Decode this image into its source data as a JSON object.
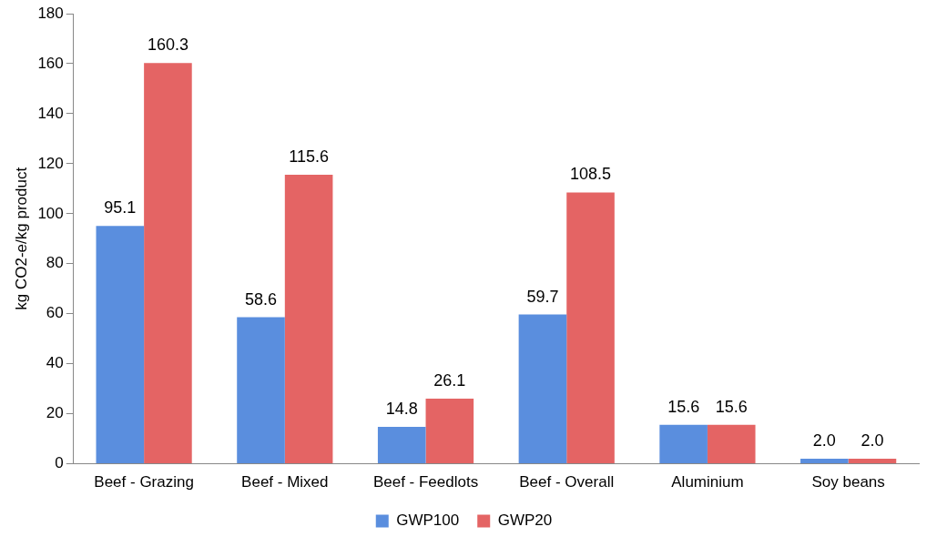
{
  "chart_data": {
    "type": "bar",
    "ylabel": "kg CO2-e/kg product",
    "categories": [
      "Beef - Grazing",
      "Beef - Mixed",
      "Beef - Feedlots",
      "Beef - Overall",
      "Aluminium",
      "Soy beans"
    ],
    "series": [
      {
        "name": "GWP100",
        "color": "#5a8ede",
        "values": [
          95.1,
          58.6,
          14.8,
          59.7,
          15.6,
          2.0
        ],
        "value_labels": [
          "95.1",
          "58.6",
          "14.8",
          "59.7",
          "15.6",
          "2.0"
        ]
      },
      {
        "name": "GWP20",
        "color": "#e46464",
        "values": [
          160.3,
          115.6,
          26.1,
          108.5,
          15.6,
          2.0
        ],
        "value_labels": [
          "160.3",
          "115.6",
          "26.1",
          "108.5",
          "15.6",
          "2.0"
        ]
      }
    ],
    "ylim": [
      0,
      180
    ],
    "yticks": [
      0,
      20,
      40,
      60,
      80,
      100,
      120,
      140,
      160,
      180
    ],
    "grid": false,
    "legend": "bottom"
  }
}
